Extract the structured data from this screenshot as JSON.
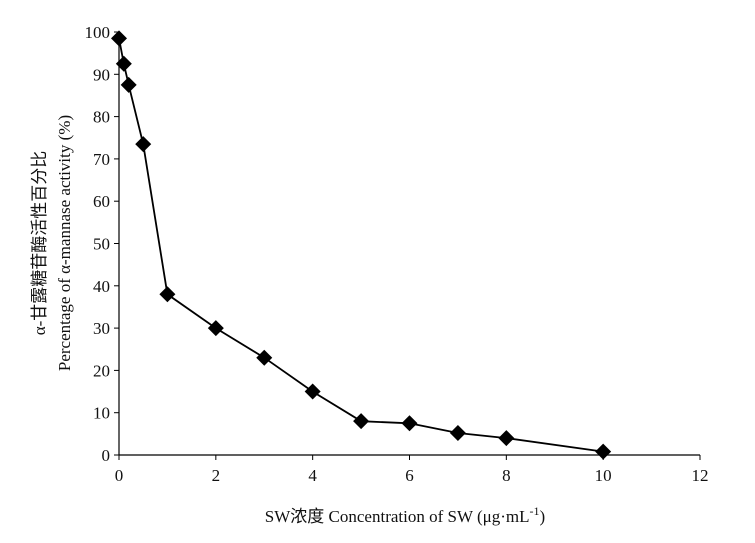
{
  "chart_data": {
    "type": "line",
    "xlabel": "SW浓度 Concentration of SW (μg·mL",
    "xlabel_superscript": "-1",
    "xlabel_suffix": ")",
    "ylabel_line1": "α-甘露糖苷酶活性百分比",
    "ylabel_line2": "Percentage of α-mannase activity (%)",
    "xlim": [
      0,
      12
    ],
    "ylim": [
      0,
      100
    ],
    "x_ticks": [
      0,
      2,
      4,
      6,
      8,
      10,
      12
    ],
    "y_ticks": [
      0,
      10,
      20,
      30,
      40,
      50,
      60,
      70,
      80,
      90,
      100
    ],
    "grid": false,
    "marker": "diamond",
    "series": [
      {
        "x": [
          0,
          0.1,
          0.2,
          0.5,
          1,
          2,
          3,
          4,
          5,
          6,
          7,
          8,
          10
        ],
        "values": [
          98.5,
          92.5,
          87.5,
          73.5,
          38,
          30,
          23,
          15,
          8,
          7.5,
          5.2,
          4,
          0.8
        ]
      }
    ],
    "colors": {
      "line": "#000000",
      "marker": "#000000",
      "axis": "#000000"
    }
  }
}
